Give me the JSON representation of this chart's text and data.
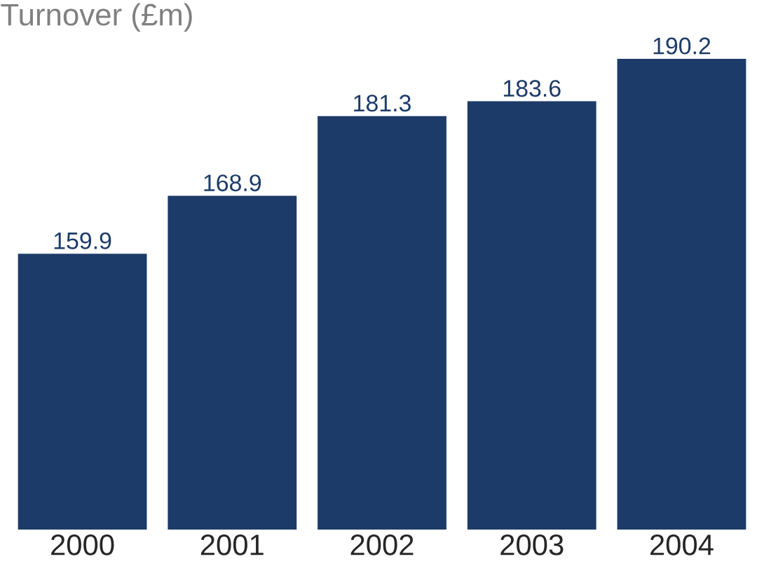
{
  "chart_data": {
    "type": "bar",
    "title": "Turnover (£m)",
    "categories": [
      "2000",
      "2001",
      "2002",
      "2003",
      "2004"
    ],
    "values": [
      159.9,
      168.9,
      181.3,
      183.6,
      190.2
    ],
    "color": "#1d3b68",
    "ylim": [
      117,
      190.2
    ],
    "data_labels": true
  }
}
